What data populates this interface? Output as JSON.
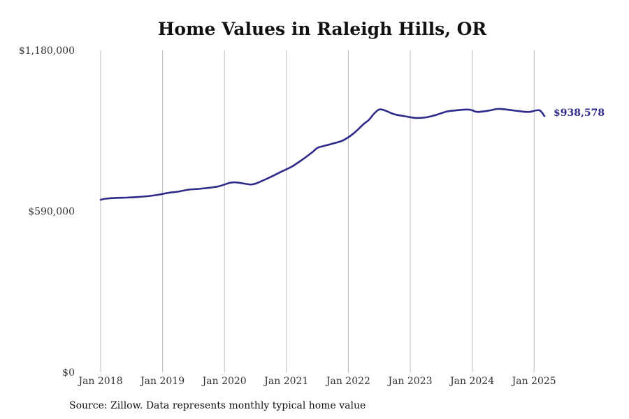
{
  "chart_data": {
    "type": "line",
    "title": "Home Values in Raleigh Hills, OR",
    "xlabel": "",
    "ylabel": "",
    "ylim": [
      0,
      1180000
    ],
    "xlim": [
      "2018-01",
      "2025-04"
    ],
    "grid": "vertical",
    "y_ticks": [
      {
        "value": 0,
        "label": "$0"
      },
      {
        "value": 590000,
        "label": "$590,000"
      },
      {
        "value": 1180000,
        "label": "$1,180,000"
      }
    ],
    "x_ticks": [
      {
        "value": "2018-01",
        "label": "Jan 2018"
      },
      {
        "value": "2019-01",
        "label": "Jan 2019"
      },
      {
        "value": "2020-01",
        "label": "Jan 2020"
      },
      {
        "value": "2021-01",
        "label": "Jan 2021"
      },
      {
        "value": "2022-01",
        "label": "Jan 2022"
      },
      {
        "value": "2023-01",
        "label": "Jan 2023"
      },
      {
        "value": "2024-01",
        "label": "Jan 2024"
      },
      {
        "value": "2025-01",
        "label": "Jan 2025"
      }
    ],
    "end_label": "$938,578",
    "series": [
      {
        "color": "#2e2a8a",
        "x": [
          "2018-01",
          "2018-02",
          "2018-04",
          "2018-06",
          "2018-08",
          "2018-10",
          "2018-12",
          "2019-02",
          "2019-04",
          "2019-06",
          "2019-08",
          "2019-10",
          "2019-12",
          "2020-02",
          "2020-03",
          "2020-04",
          "2020-06",
          "2020-07",
          "2020-08",
          "2020-10",
          "2020-12",
          "2021-02",
          "2021-04",
          "2021-06",
          "2021-07",
          "2021-08",
          "2021-10",
          "2021-12",
          "2022-02",
          "2022-04",
          "2022-05",
          "2022-06",
          "2022-07",
          "2022-08",
          "2022-10",
          "2022-12",
          "2023-02",
          "2023-04",
          "2023-06",
          "2023-08",
          "2023-10",
          "2023-12",
          "2024-01",
          "2024-02",
          "2024-04",
          "2024-06",
          "2024-08",
          "2024-10",
          "2024-12",
          "2025-02",
          "2025-03"
        ],
        "values": [
          632000,
          636000,
          639000,
          640000,
          642000,
          645000,
          650000,
          657000,
          662000,
          669000,
          672000,
          676000,
          682000,
          694000,
          696000,
          694000,
          688000,
          691000,
          699000,
          716000,
          735000,
          753000,
          778000,
          806000,
          822000,
          828000,
          838000,
          850000,
          875000,
          910000,
          925000,
          948000,
          963000,
          960000,
          945000,
          938000,
          932000,
          934000,
          943000,
          955000,
          960000,
          963000,
          960000,
          954000,
          958000,
          965000,
          962000,
          957000,
          954000,
          960000,
          938578
        ]
      }
    ]
  },
  "source": "Source: Zillow. Data represents monthly typical home value"
}
